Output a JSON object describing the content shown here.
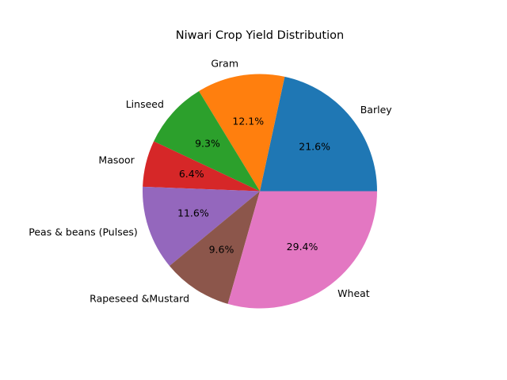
{
  "chart_data": {
    "type": "pie",
    "title": "Niwari Crop Yield Distribution",
    "categories": [
      "Barley",
      "Gram",
      "Linseed",
      "Masoor",
      "Peas & beans (Pulses)",
      "Rapeseed &Mustard",
      "Wheat"
    ],
    "values": [
      21.6,
      12.1,
      9.3,
      6.4,
      11.6,
      9.6,
      29.4
    ],
    "percent_labels": [
      "21.6%",
      "12.1%",
      "9.3%",
      "6.4%",
      "11.6%",
      "9.6%",
      "29.4%"
    ],
    "colors": [
      "#1f77b4",
      "#ff7f0e",
      "#2ca02c",
      "#d62728",
      "#9467bd",
      "#8c564b",
      "#e377c2"
    ],
    "start_angle": 0,
    "direction": "counterclockwise",
    "legend": "none"
  }
}
